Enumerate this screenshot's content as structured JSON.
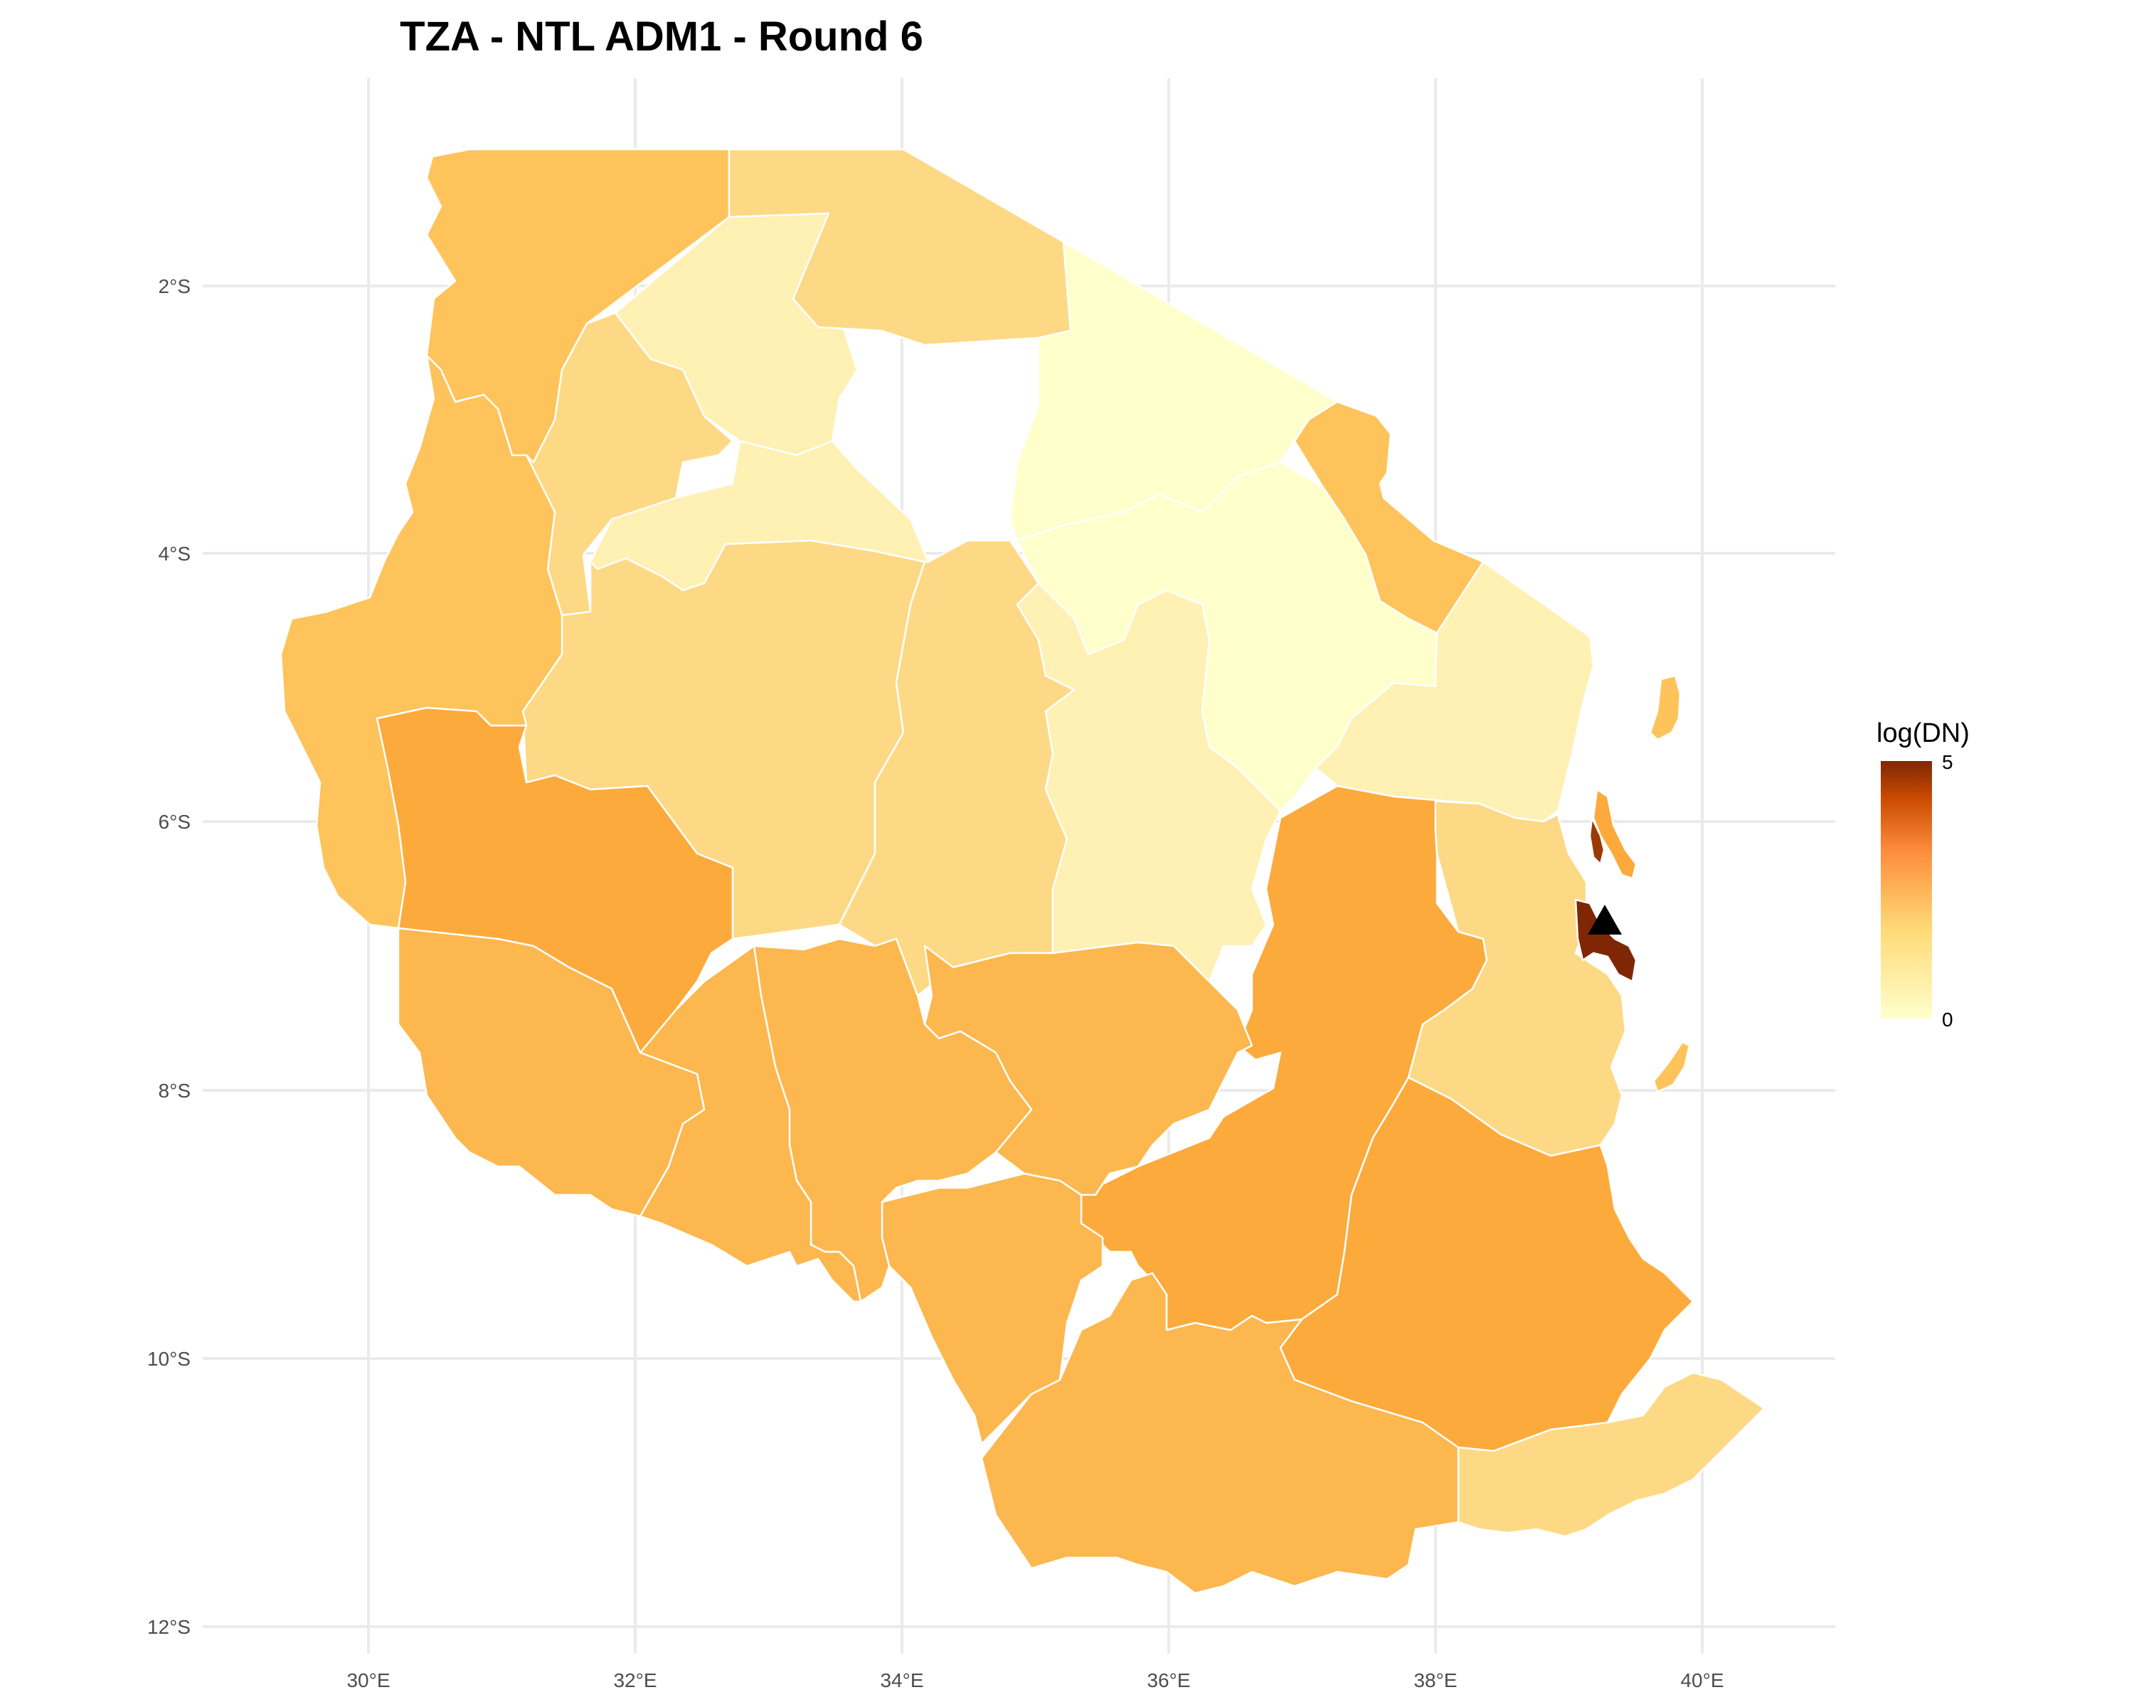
{
  "title": "TZA - NTL ADM1 - Round 6",
  "legend": {
    "title": "log(DN)",
    "max_label": "5",
    "min_label": "0",
    "colors": [
      "#ffffcc",
      "#fed976",
      "#fd8d3c",
      "#cc4c02",
      "#7f2704"
    ]
  },
  "axes": {
    "x_ticks": [
      "30°E",
      "32°E",
      "34°E",
      "36°E",
      "38°E",
      "40°E"
    ],
    "y_ticks": [
      "2°S",
      "4°S",
      "6°S",
      "8°S",
      "10°S",
      "12°S"
    ]
  },
  "marker": {
    "symbol": "triangle",
    "color": "#000000"
  },
  "region_colors": {
    "pale": "#ffffcc",
    "light": "#fff0b3",
    "mid_light": "#fdd985",
    "medium": "#fec35a",
    "med_dark": "#fcb74e",
    "orange": "#fcaa3c",
    "dark": "#9c3a06",
    "darkest": "#7f2704"
  }
}
